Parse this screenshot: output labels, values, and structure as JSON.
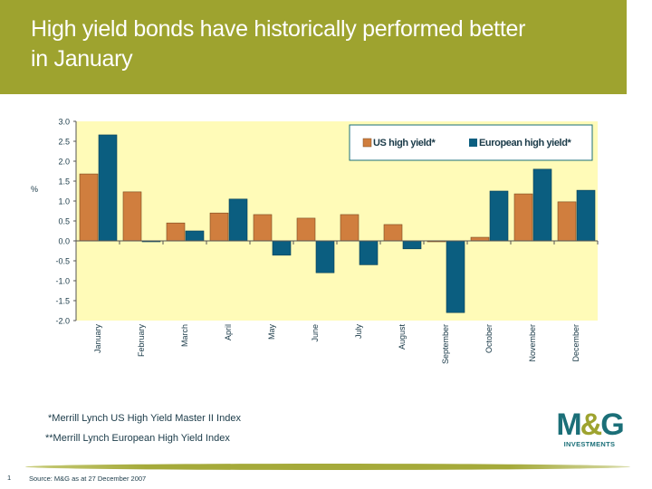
{
  "header": {
    "title": "High yield bonds have historically performed better in January"
  },
  "notes": [
    "*Merrill Lynch US High Yield Master II Index",
    "**Merrill Lynch European High Yield Index"
  ],
  "footer": {
    "page_number": "1",
    "source": "Source: M&G as at 27 December 2007"
  },
  "logo": {
    "text": "M&G",
    "subtext": "INVESTMENTS"
  },
  "colors": {
    "us": "#d07e3e",
    "eu": "#0b5e80",
    "plot_bg": "#fffbb8",
    "header": "#9ea32f"
  },
  "chart_data": {
    "type": "bar",
    "title": "",
    "xlabel": "",
    "ylabel": "%",
    "ylim": [
      -2.0,
      3.0
    ],
    "yticks": [
      "3.0",
      "2.5",
      "2.0",
      "1.5",
      "1.0",
      "0.5",
      "0.0",
      "-0.5",
      "-1.0",
      "-1.5",
      "-2.0"
    ],
    "categories": [
      "January",
      "February",
      "March",
      "April",
      "May",
      "June",
      "July",
      "August",
      "September",
      "October",
      "November",
      "December"
    ],
    "series": [
      {
        "name": "US high yield*",
        "values": [
          1.68,
          1.23,
          0.45,
          0.7,
          0.66,
          0.57,
          0.66,
          0.41,
          -0.02,
          0.09,
          1.18,
          0.98
        ]
      },
      {
        "name": "European high yield*",
        "values": [
          2.66,
          -0.02,
          0.25,
          1.05,
          -0.36,
          -0.8,
          -0.6,
          -0.2,
          -1.8,
          1.25,
          1.8,
          1.27
        ]
      }
    ],
    "legend": "top-right",
    "grid": false
  }
}
